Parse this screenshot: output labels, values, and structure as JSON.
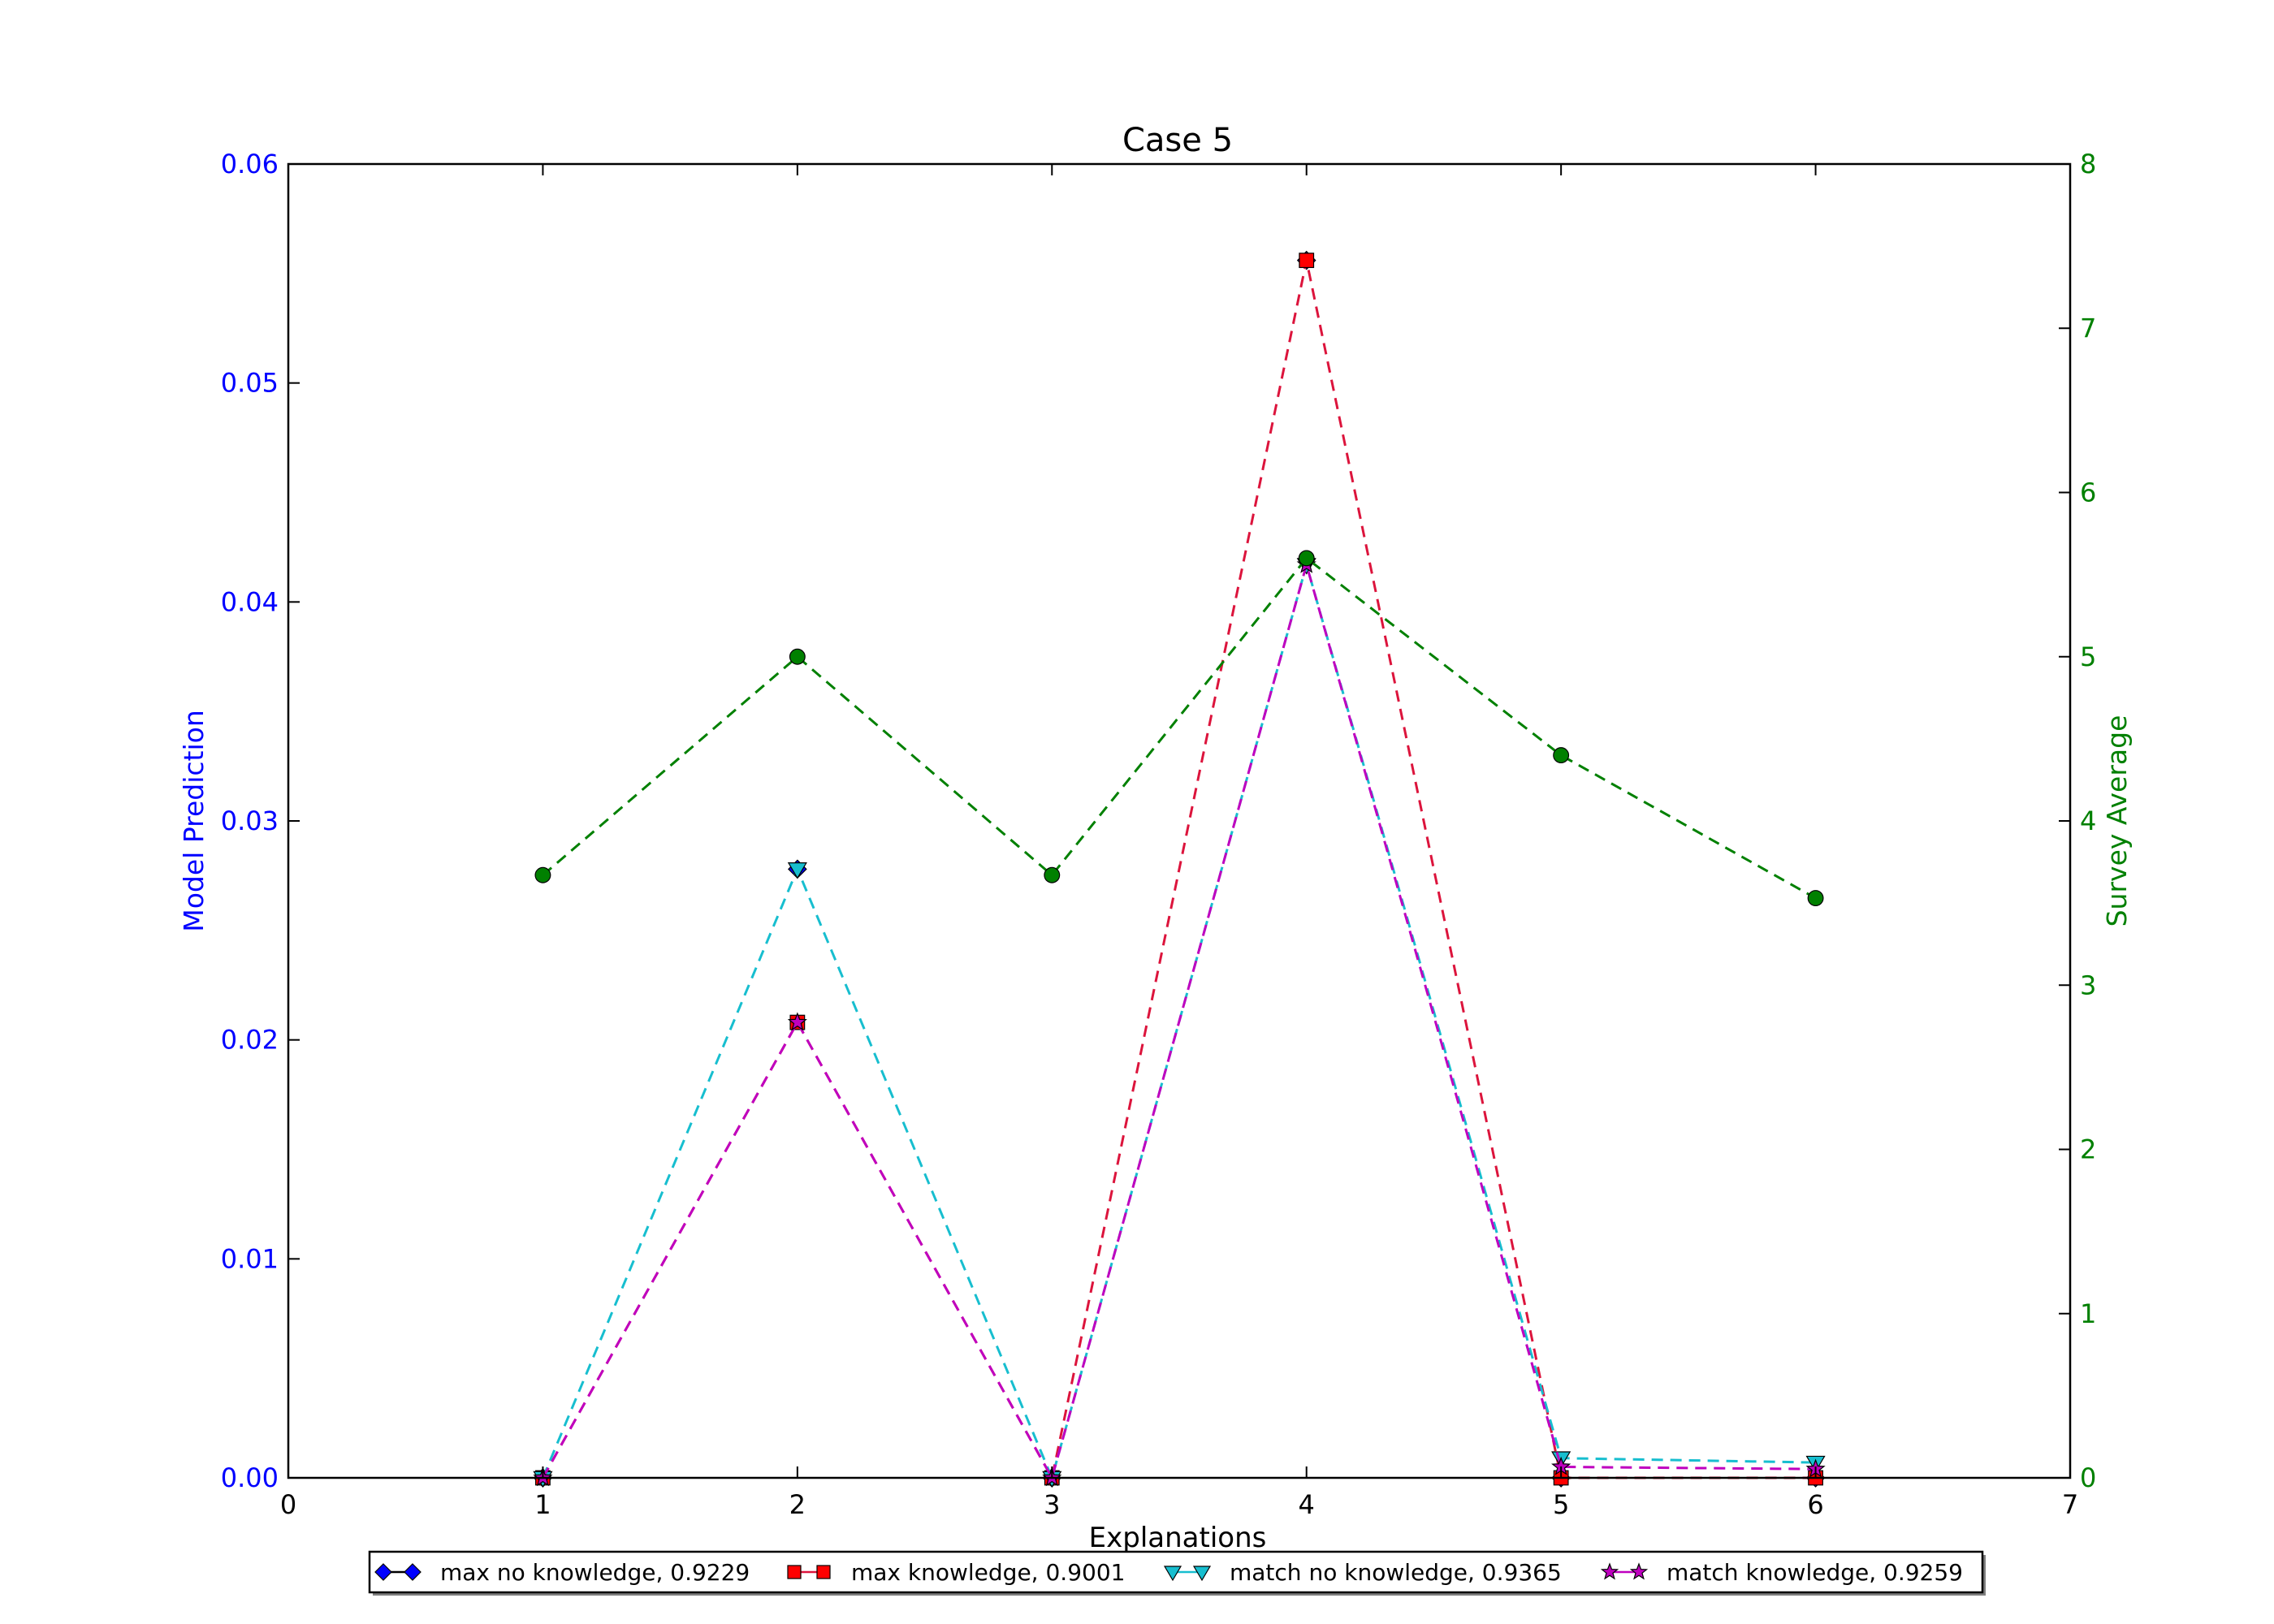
{
  "chart_data": {
    "type": "line",
    "title": "Case 5",
    "xlabel": "Explanations",
    "ylabel_left": "Model Prediction",
    "ylabel_right": "Survey Average",
    "xlim": [
      0,
      7
    ],
    "ylim_left": [
      0,
      0.06
    ],
    "ylim_right": [
      0,
      8
    ],
    "xticks": [
      "0",
      "1",
      "2",
      "3",
      "4",
      "5",
      "6",
      "7"
    ],
    "yticks_left": [
      "0.00",
      "0.01",
      "0.02",
      "0.03",
      "0.04",
      "0.05",
      "0.06"
    ],
    "yticks_right": [
      "0",
      "1",
      "2",
      "3",
      "4",
      "5",
      "6",
      "7",
      "8"
    ],
    "x": [
      1,
      2,
      3,
      4,
      5,
      6
    ],
    "series": [
      {
        "name": "max no knowledge, 0.9229",
        "axis": "left",
        "color": "#0000ff",
        "marker": "diamond",
        "line": "none",
        "values": [
          0,
          0.0278,
          0,
          0.0556,
          0,
          0
        ]
      },
      {
        "name": "max knowledge, 0.9001",
        "axis": "left",
        "color": "#ff0000",
        "line_color": "#dc143c",
        "marker": "square",
        "line": "dashed",
        "values": [
          0,
          0.0208,
          0,
          0.0556,
          0,
          0
        ]
      },
      {
        "name": "match no knowledge, 0.9365",
        "axis": "left",
        "color": "#17becf",
        "marker": "triangle-down",
        "line": "dashed",
        "values": [
          0,
          0.0278,
          0,
          0.0417,
          0.0009,
          0.0007
        ]
      },
      {
        "name": "match knowledge, 0.9259",
        "axis": "left",
        "color": "#bf00bf",
        "marker": "star",
        "line": "dashed",
        "values": [
          0,
          0.0208,
          0,
          0.0417,
          0.0005,
          0.0004
        ]
      },
      {
        "axis": "right",
        "color": "#008000",
        "marker": "circle",
        "line": "dashed",
        "values": [
          3.67,
          5.0,
          3.67,
          5.6,
          4.4,
          3.53
        ]
      }
    ],
    "legend_position": "bottom-center",
    "colors": {
      "left_axis": "#0000ff",
      "right_axis": "#008000"
    }
  }
}
